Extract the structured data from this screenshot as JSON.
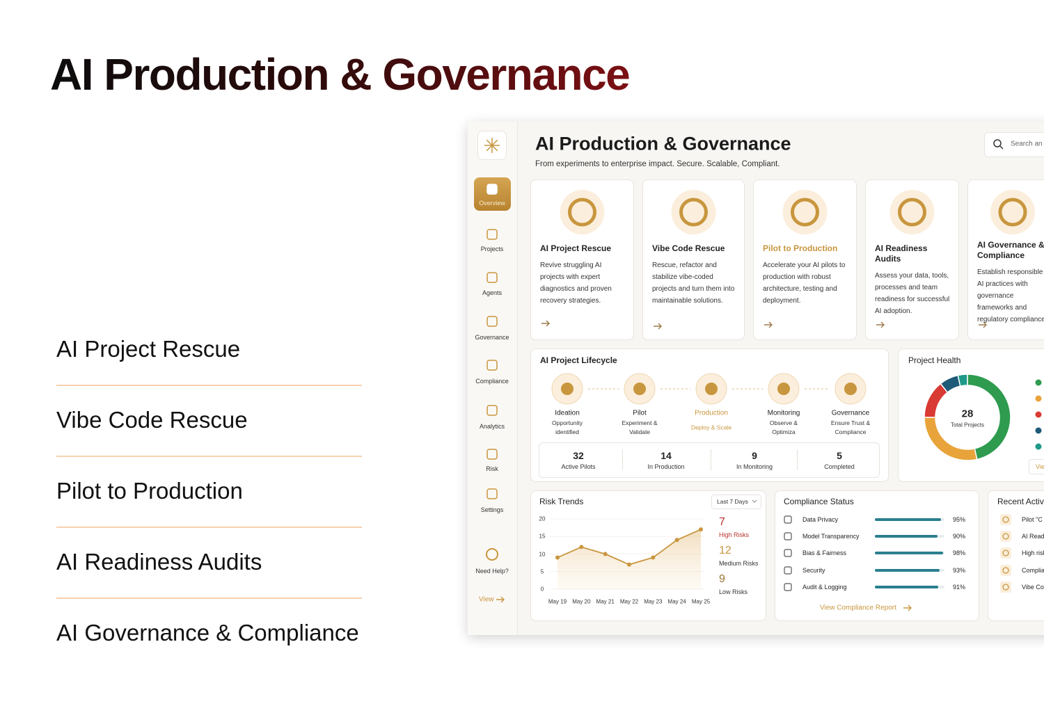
{
  "title": "AI Production & Governance",
  "services": [
    "AI Project Rescue",
    "Vibe Code Rescue",
    "Pilot to Production",
    "AI Readiness Audits",
    "AI Governance & Compliance"
  ],
  "dashboard": {
    "sidebar": [
      "Overview",
      "Projects",
      "Agents",
      "Governance",
      "Compliance",
      "Analytics",
      "Risk",
      "Settings"
    ],
    "help": "Need Help?",
    "view": "View",
    "title": "AI Production & Governance",
    "subtitle": "From experiments to enterprise impact. Secure. Scalable, Compliant.",
    "search": "Search an",
    "cards": [
      {
        "title": "AI Project Rescue",
        "text": "Revive struggling AI projects with expert diagnostics and proven recovery strategies."
      },
      {
        "title": "Vibe Code Rescue",
        "text": "Rescue, refactor and stabilize vibe-coded projects and turn them into maintainable solutions."
      },
      {
        "title": "Pilot to Production",
        "text": "Accelerate your AI pilots to production with robust architecture, testing and deployment."
      },
      {
        "title": "AI Readiness Audits",
        "text": "Assess your data, tools, processes and team readiness for successful AI adoption."
      },
      {
        "title": "AI Governance & Compliance",
        "text": "Establish responsible AI practices with governance frameworks and regulatory compliance."
      }
    ],
    "lifecycle": {
      "title": "AI Project Lifecycle",
      "stages": [
        {
          "name": "Ideation",
          "detail": "Opportunity identified"
        },
        {
          "name": "Pilot",
          "detail": "Experiment & Validate"
        },
        {
          "name": "Production",
          "detail": "Deploy & Scale"
        },
        {
          "name": "Monitoring",
          "detail": "Observe & Optimiza"
        },
        {
          "name": "Governance",
          "detail": "Ensure Trust & Compliance"
        }
      ],
      "stats": [
        {
          "value": 32,
          "label": "Active Pilots"
        },
        {
          "value": 14,
          "label": "In Production"
        },
        {
          "value": 9,
          "label": "In Monitoring"
        },
        {
          "value": 5,
          "label": "Completed"
        }
      ]
    },
    "risks": [
      {
        "value": 7,
        "label": "High Risks"
      },
      {
        "value": 12,
        "label": "Medium Risks"
      },
      {
        "value": 9,
        "label": "Low Risks"
      }
    ],
    "compliance": {
      "title": "Compliance Status",
      "names": [
        "Data Privacy",
        "Model Transparency",
        "Bias & Fairness",
        "Security",
        "Audit & Logging"
      ],
      "values": [
        95,
        90,
        98,
        93,
        91
      ],
      "value_labels": [
        "95%",
        "90%",
        "98%",
        "93%",
        "91%"
      ],
      "xlim": [
        0,
        100
      ],
      "color": "#2a7f8e",
      "link": "View Compliance Report"
    },
    "recent": {
      "title": "Recent Activ",
      "items": [
        "Pilot \"C",
        "AI Readi",
        "High risk",
        "Complia",
        "Vibe Co"
      ]
    }
  },
  "chart_data": [
    {
      "type": "line",
      "title": "Risk Trends",
      "range": "Last 7 Days",
      "categories": [
        "May 19",
        "May 20",
        "May 21",
        "May 22",
        "May 23",
        "May 24",
        "May 25"
      ],
      "values": [
        9,
        12,
        10,
        7,
        9,
        14,
        17
      ],
      "color": "#c8963e",
      "ylim": [
        0,
        20
      ],
      "yticks": [
        0,
        5,
        10,
        15,
        20
      ]
    },
    {
      "type": "pie",
      "title": "Project Health",
      "total": 28,
      "total_label": "Total Projects",
      "values": [
        13,
        8,
        4,
        2,
        1
      ],
      "colors": [
        "#2e9b4f",
        "#e8a33a",
        "#d93a34",
        "#1f5a78",
        "#1f9a8a"
      ],
      "button": "Vie"
    }
  ]
}
